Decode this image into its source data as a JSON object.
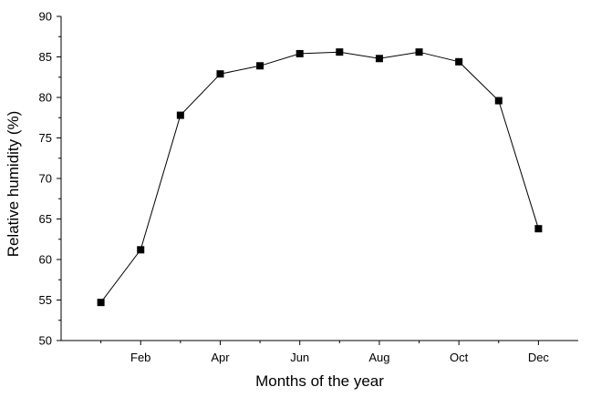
{
  "chart_data": {
    "type": "line",
    "xlabel": "Months of the year",
    "ylabel": "Relative humidity (%)",
    "xlim": [
      0,
      13
    ],
    "ylim": [
      50,
      90
    ],
    "y_ticks": [
      50,
      55,
      60,
      65,
      70,
      75,
      80,
      85,
      90
    ],
    "x_ticks": [
      {
        "value": 2,
        "label": "Feb"
      },
      {
        "value": 4,
        "label": "Apr"
      },
      {
        "value": 6,
        "label": "Jun"
      },
      {
        "value": 8,
        "label": "Aug"
      },
      {
        "value": 10,
        "label": "Oct"
      },
      {
        "value": 12,
        "label": "Dec"
      }
    ],
    "x_minor_ticks": [
      1,
      3,
      5,
      7,
      9,
      11
    ],
    "grid": false,
    "marker": "square",
    "series": [
      {
        "x": [
          1,
          2,
          3,
          4,
          5,
          6,
          7,
          8,
          9,
          10,
          11,
          12
        ],
        "values": [
          54.7,
          61.2,
          77.8,
          82.9,
          83.9,
          85.4,
          85.6,
          84.8,
          85.6,
          84.4,
          79.6,
          63.8
        ]
      }
    ],
    "colors": {
      "line": "#000000",
      "marker": "#000000",
      "axis": "#000000"
    }
  }
}
